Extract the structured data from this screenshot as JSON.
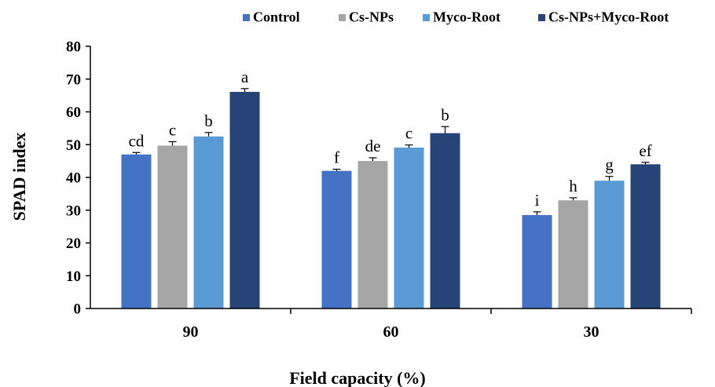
{
  "chart_data": {
    "type": "bar",
    "title": "",
    "xlabel": "Field capacity (%)",
    "ylabel": "SPAD index",
    "categories": [
      "90",
      "60",
      "30"
    ],
    "ylim": [
      0,
      80
    ],
    "yticks": [
      "0",
      "10",
      "20",
      "30",
      "40",
      "50",
      "60",
      "70",
      "80"
    ],
    "grid": false,
    "legend_position": "top-right",
    "series": [
      {
        "name": "Control",
        "color": "#4472C4",
        "values": [
          47,
          42,
          28.5
        ],
        "errors": [
          0.6,
          0.5,
          1.0
        ],
        "letters": [
          "cd",
          "f",
          "i"
        ]
      },
      {
        "name": "Cs-NPs",
        "color": "#A5A5A5",
        "values": [
          49.7,
          45,
          33
        ],
        "errors": [
          1.2,
          1.0,
          0.8
        ],
        "letters": [
          "c",
          "de",
          "h"
        ]
      },
      {
        "name": "Myco-Root",
        "color": "#5B9BD5",
        "values": [
          52.5,
          49.1,
          39
        ],
        "errors": [
          1.2,
          0.8,
          1.3
        ],
        "letters": [
          "b",
          "c",
          "g"
        ]
      },
      {
        "name": "Cs-NPs+Myco-Root",
        "color": "#264478",
        "values": [
          66.1,
          53.5,
          44
        ],
        "errors": [
          1.0,
          2.0,
          0.6
        ],
        "letters": [
          "a",
          "b",
          "ef"
        ]
      }
    ]
  }
}
